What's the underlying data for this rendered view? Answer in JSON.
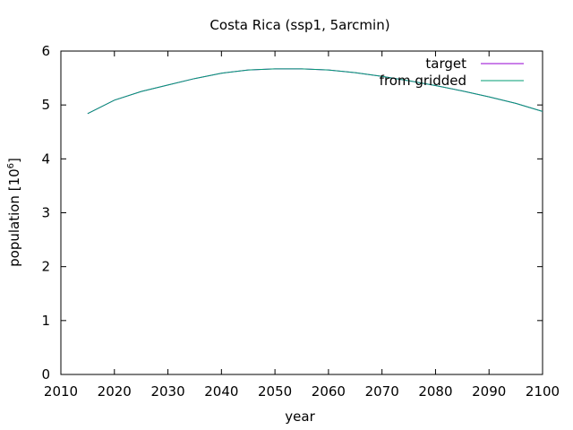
{
  "chart_data": {
    "type": "line",
    "title": "Costa Rica (ssp1, 5arcmin)",
    "xlabel": "year",
    "ylabel_prefix": "population [10",
    "ylabel_exponent": "6",
    "ylabel_suffix": "]",
    "xlim": [
      2010,
      2100
    ],
    "ylim": [
      0,
      6
    ],
    "xticks": [
      2010,
      2020,
      2030,
      2040,
      2050,
      2060,
      2070,
      2080,
      2090,
      2100
    ],
    "yticks": [
      0,
      1,
      2,
      3,
      4,
      5,
      6
    ],
    "grid": false,
    "legend_position": "top-right",
    "x": [
      2015,
      2020,
      2025,
      2030,
      2035,
      2040,
      2045,
      2050,
      2055,
      2060,
      2065,
      2070,
      2075,
      2080,
      2085,
      2090,
      2095,
      2100
    ],
    "series": [
      {
        "name": "target",
        "color": "#9400d3",
        "values": [
          4.84,
          5.09,
          5.25,
          5.37,
          5.49,
          5.59,
          5.65,
          5.67,
          5.67,
          5.65,
          5.6,
          5.53,
          5.45,
          5.36,
          5.26,
          5.15,
          5.03,
          4.88
        ]
      },
      {
        "name": "from gridded",
        "color": "#009e73",
        "values": [
          4.84,
          5.09,
          5.25,
          5.37,
          5.49,
          5.59,
          5.65,
          5.67,
          5.67,
          5.65,
          5.6,
          5.53,
          5.45,
          5.36,
          5.26,
          5.15,
          5.03,
          4.88
        ]
      }
    ]
  }
}
